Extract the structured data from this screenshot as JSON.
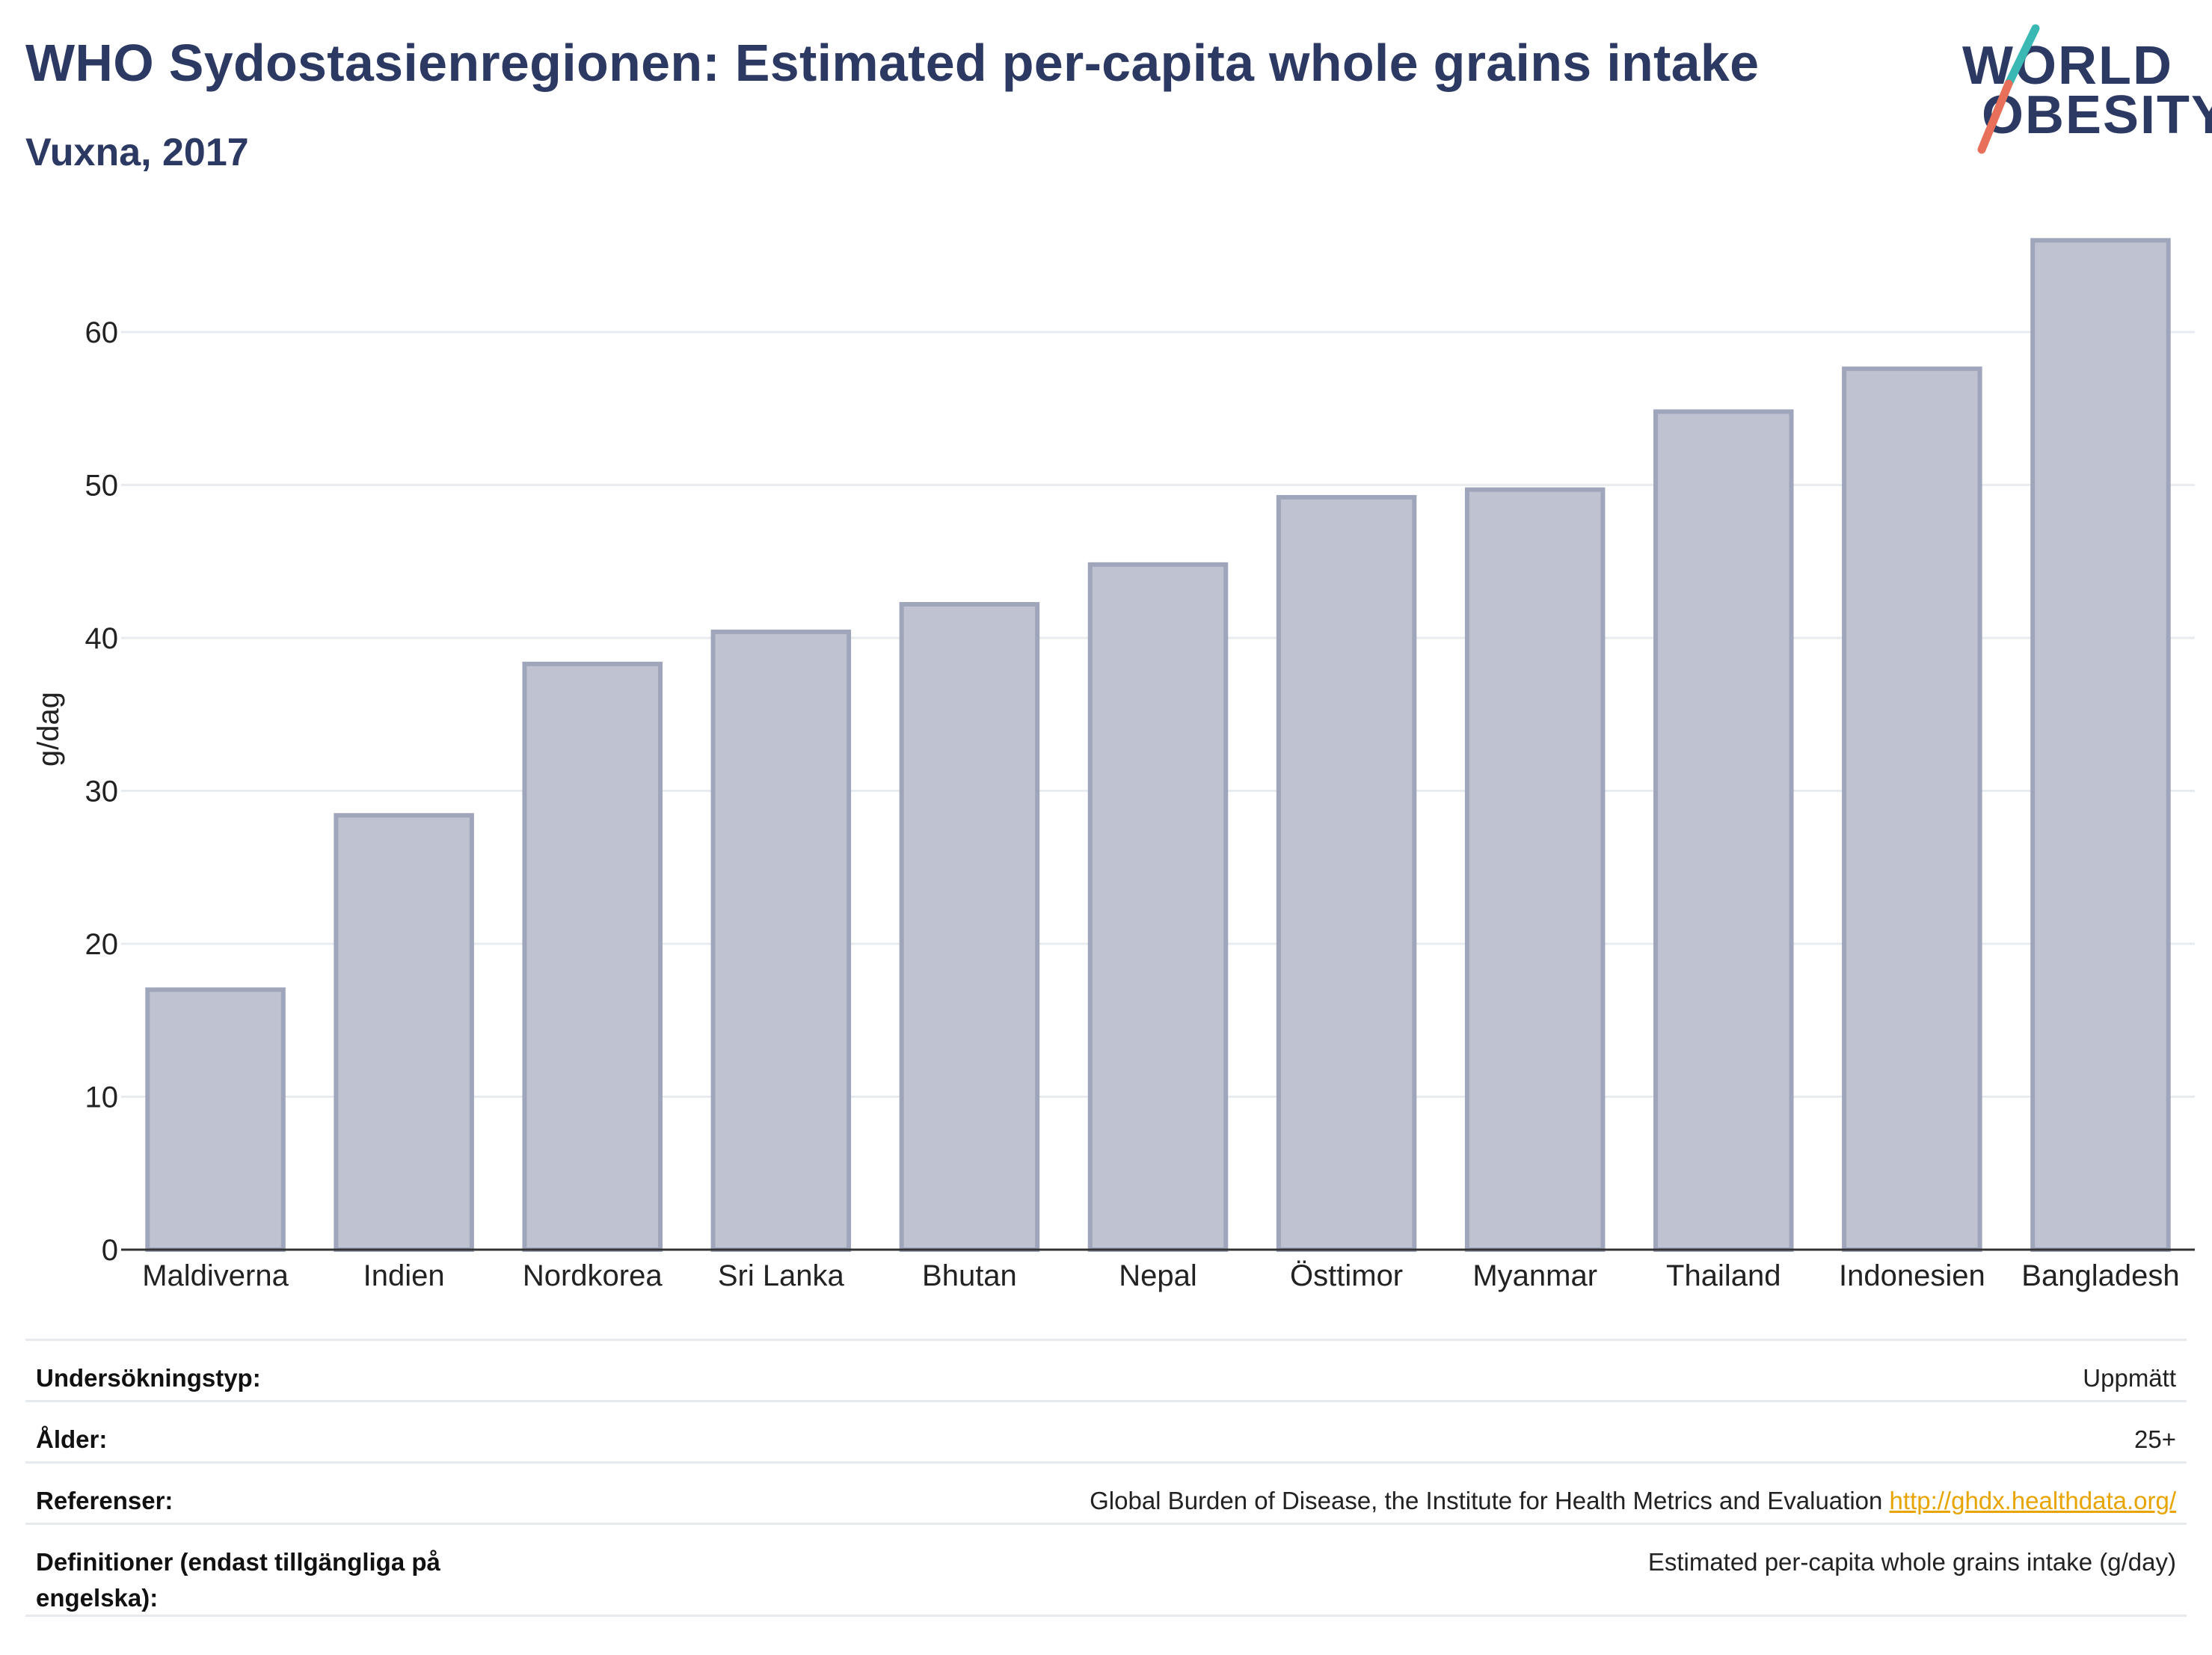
{
  "header": {
    "title": "WHO Sydostasienregionen: Estimated per-capita whole grains intake",
    "subtitle": "Vuxna, 2017"
  },
  "logo": {
    "line1": "WORLD",
    "line2": "OBESITY",
    "accent_colors": [
      "#3ab8b3",
      "#e8705a"
    ]
  },
  "chart_data": {
    "type": "bar",
    "title": "WHO Sydostasienregionen: Estimated per-capita whole grains intake",
    "subtitle": "Vuxna, 2017",
    "ylabel": "g/dag",
    "xlabel": "",
    "ylim": [
      0,
      69
    ],
    "yticks": [
      0,
      10,
      20,
      30,
      40,
      50,
      60
    ],
    "grid": true,
    "bar_color": "#bfc3d1",
    "bar_edge_color": "#9fa5bb",
    "categories": [
      "Maldiverna",
      "Indien",
      "Nordkorea",
      "Sri Lanka",
      "Bhutan",
      "Nepal",
      "Östtimor",
      "Myanmar",
      "Thailand",
      "Indonesien",
      "Bangladesh"
    ],
    "values": [
      17.0,
      28.4,
      38.3,
      40.4,
      42.2,
      44.8,
      49.2,
      49.7,
      54.8,
      57.6,
      66.0
    ]
  },
  "info": {
    "rows": [
      {
        "key": "Undersökningstyp:",
        "value": "Uppmätt"
      },
      {
        "key": "Ålder:",
        "value": "25+"
      },
      {
        "key": "Referenser:",
        "value": "Global Burden of Disease, the Institute for Health Metrics and Evaluation",
        "link": "http://ghdx.healthdata.org/"
      },
      {
        "key": "Definitioner (endast tillgängliga på engelska):",
        "value": "Estimated per-capita whole grains intake (g/day)"
      }
    ]
  }
}
